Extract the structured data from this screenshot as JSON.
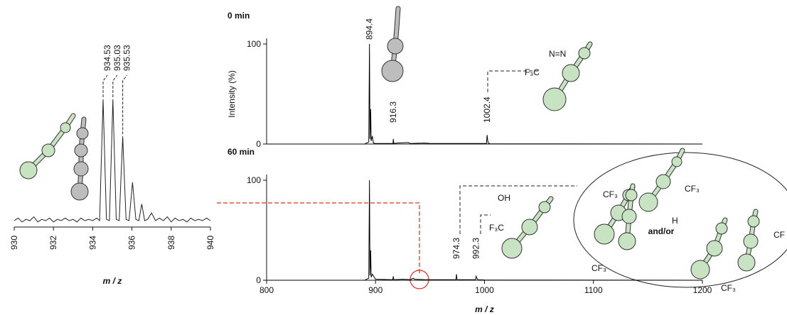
{
  "chart_data": [
    {
      "type": "line",
      "xlabel": "m / z",
      "xlim": [
        930,
        940
      ],
      "ylim": [
        0,
        100
      ],
      "xticks": [
        930,
        932,
        934,
        936,
        938,
        940
      ],
      "peak_labels": [
        934.53,
        935.03,
        935.53
      ],
      "color": "#222222",
      "x": [
        930,
        930.2,
        930.4,
        930.6,
        930.8,
        931,
        931.2,
        931.4,
        931.6,
        931.8,
        932,
        932.2,
        932.4,
        932.6,
        932.8,
        933,
        933.2,
        933.4,
        933.6,
        933.8,
        934,
        934.2,
        934.35,
        934.53,
        934.7,
        934.85,
        935.03,
        935.2,
        935.35,
        935.53,
        935.7,
        935.85,
        936.03,
        936.2,
        936.35,
        936.5,
        936.65,
        936.8,
        937,
        937.2,
        937.4,
        937.6,
        937.8,
        938,
        938.2,
        938.4,
        938.6,
        938.8,
        939,
        939.2,
        939.4,
        939.6,
        939.8,
        940
      ],
      "values": [
        5,
        7,
        4,
        6,
        5,
        8,
        4,
        6,
        5,
        7,
        4,
        6,
        5,
        7,
        5,
        6,
        4,
        7,
        5,
        6,
        5,
        7,
        5,
        100,
        6,
        5,
        100,
        6,
        5,
        71,
        6,
        5,
        35,
        6,
        5,
        18,
        5,
        6,
        11,
        5,
        7,
        5,
        8,
        4,
        7,
        5,
        6,
        4,
        7,
        5,
        6,
        5,
        7,
        5
      ]
    },
    {
      "type": "line",
      "title": "0 min",
      "ylabel": "Intensity (%)",
      "xlim": [
        800,
        1200
      ],
      "ylim": [
        0,
        100
      ],
      "yticks": [
        0,
        100
      ],
      "peak_labels": [
        894.4,
        916.3,
        1002.4
      ],
      "color": "#000000",
      "x": [
        800,
        890,
        893.8,
        894.4,
        894.9,
        895.5,
        896,
        897,
        898,
        900,
        916,
        916.3,
        916.8,
        920,
        930,
        932,
        945,
        950,
        1001.8,
        1002.4,
        1003,
        1003.5,
        1005,
        1200
      ],
      "values": [
        0,
        0,
        2,
        100,
        5,
        35,
        3,
        8,
        1,
        0.5,
        0.5,
        5,
        0.5,
        1,
        1.5,
        0.5,
        1,
        0.5,
        0.5,
        9,
        3,
        1,
        0.3,
        0
      ]
    },
    {
      "type": "line",
      "title": "60 min",
      "xlabel": "m / z",
      "xlim": [
        800,
        1200
      ],
      "ylim": [
        0,
        100
      ],
      "xticks": [
        800,
        900,
        1000,
        1100,
        1200
      ],
      "yticks": [
        0,
        100
      ],
      "peak_labels": [
        974.3,
        992.3
      ],
      "color": "#000000",
      "annotations": [
        "and/or"
      ],
      "x": [
        800,
        890,
        893.8,
        894.4,
        894.9,
        895.5,
        896,
        897,
        900,
        915.8,
        916.3,
        916.8,
        925,
        932,
        934.5,
        936,
        945,
        973.8,
        974.3,
        974.8,
        985,
        991.8,
        992.3,
        993,
        994,
        1000,
        1200
      ],
      "values": [
        0,
        0,
        2,
        100,
        5,
        30,
        3,
        6,
        1,
        0.5,
        4,
        0.5,
        1,
        0.5,
        2,
        1,
        0.5,
        0.5,
        6,
        0.5,
        0.5,
        0.5,
        4,
        2,
        0.5,
        0.3,
        0
      ]
    }
  ],
  "structure_labels": [
    "N=N",
    "F₃C",
    "OH",
    "F₃C",
    "CF₃",
    "H",
    "CF₃",
    "CF₃",
    "CF₃",
    "CF"
  ]
}
